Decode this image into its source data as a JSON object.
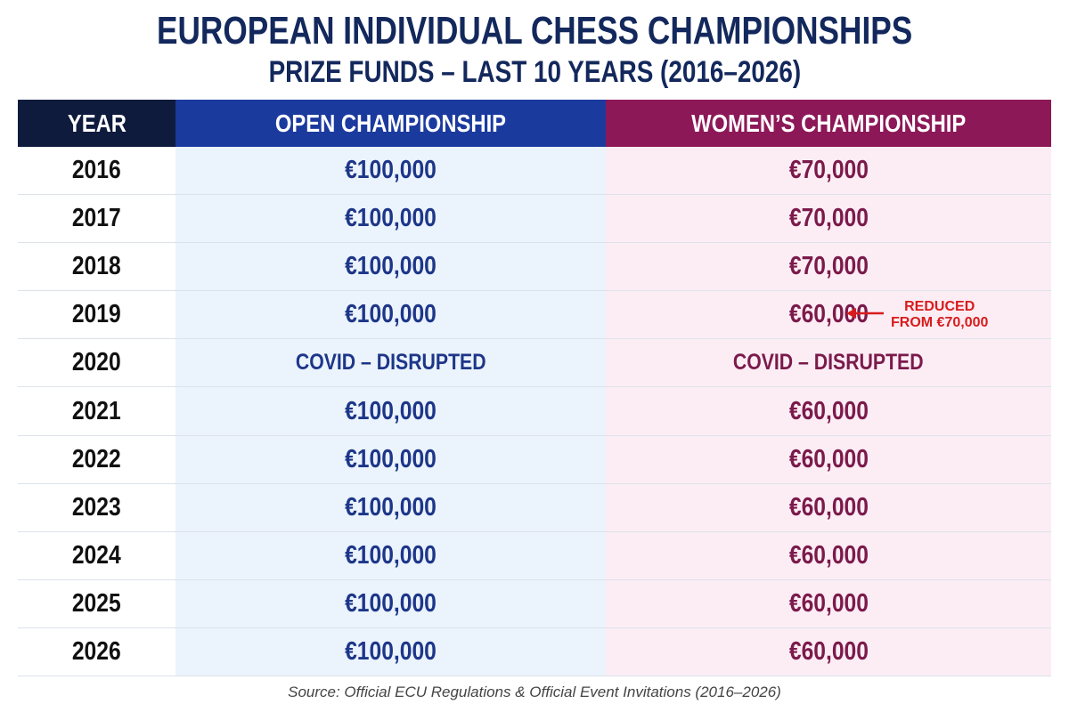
{
  "header": {
    "title": "EUROPEAN INDIVIDUAL CHESS CHAMPIONSHIPS",
    "subtitle": "PRIZE FUNDS – LAST 10 YEARS (2016–2026)"
  },
  "table": {
    "columns": [
      "YEAR",
      "OPEN CHAMPIONSHIP",
      "WOMEN’S CHAMPIONSHIP"
    ],
    "rows": [
      {
        "year": "2016",
        "open": "€100,000",
        "women": "€70,000"
      },
      {
        "year": "2017",
        "open": "€100,000",
        "women": "€70,000"
      },
      {
        "year": "2018",
        "open": "€100,000",
        "women": "€70,000"
      },
      {
        "year": "2019",
        "open": "€100,000",
        "women": "€60,000",
        "note": [
          "REDUCED",
          "FROM €70,000"
        ]
      },
      {
        "year": "2020",
        "open": "COVID – DISRUPTED",
        "women": "COVID – DISRUPTED"
      },
      {
        "year": "2021",
        "open": "€100,000",
        "women": "€60,000"
      },
      {
        "year": "2022",
        "open": "€100,000",
        "women": "€60,000"
      },
      {
        "year": "2023",
        "open": "€100,000",
        "women": "€60,000"
      },
      {
        "year": "2024",
        "open": "€100,000",
        "women": "€60,000"
      },
      {
        "year": "2025",
        "open": "€100,000",
        "women": "€60,000"
      },
      {
        "year": "2026",
        "open": "€100,000",
        "women": "€60,000"
      }
    ]
  },
  "footer": {
    "source": "Source: Official ECU Regulations & Official Event Invitations (2016–2026)"
  }
}
